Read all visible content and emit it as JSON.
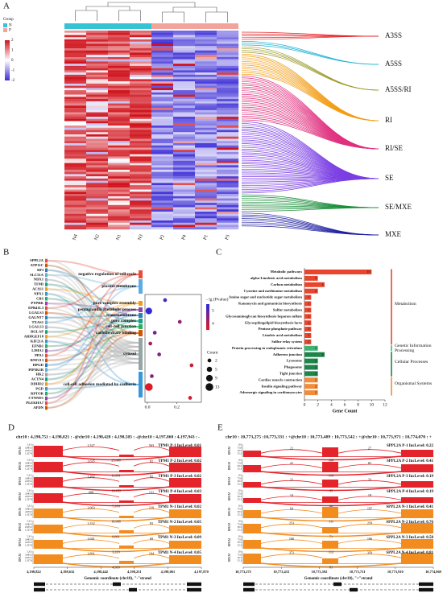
{
  "panels": {
    "A": {
      "label": "A",
      "legend_title": "Group",
      "groups": [
        {
          "name": "N",
          "color": "#35c4d4"
        },
        {
          "name": "P",
          "color": "#f2a49b"
        }
      ],
      "scale_ticks": [
        2,
        1,
        0,
        -1,
        -2
      ],
      "samples": [
        "N4",
        "N2",
        "N1",
        "N3",
        "P2",
        "P4",
        "P1",
        "P3"
      ],
      "event_types": [
        {
          "name": "A3SS",
          "color": "#e8262b"
        },
        {
          "name": "A5SS",
          "color": "#1fb3d6"
        },
        {
          "name": "A5SS/RI",
          "color": "#9a9a2a"
        },
        {
          "name": "RI",
          "color": "#f39c12"
        },
        {
          "name": "RI/SE",
          "color": "#e0307f"
        },
        {
          "name": "SE",
          "color": "#7b3fe4"
        },
        {
          "name": "SE/MXE",
          "color": "#1a8f3a"
        },
        {
          "name": "MXE",
          "color": "#2020a0"
        }
      ]
    },
    "B": {
      "label": "B",
      "genes": [
        "SPPL2A",
        "ATP11C",
        "RFI",
        "SLC51A",
        "NDX1",
        "TFMI",
        "ACSS1",
        "NPX1",
        "CBS",
        "PTPRK",
        "EPB41L3",
        "LGALS3",
        "GALNT7",
        "TXAS1",
        "LGALS3",
        "BGLAP",
        "ARHGEF18",
        "KIF21A",
        "EFNB1",
        "LIMA1",
        "PPA1",
        "RNF213",
        "HPGD",
        "PIP5K1B",
        "HK2",
        "ACTN4",
        "DDHD2",
        "PGD",
        "RPTOR",
        "CTNND1",
        "PLEKHA7",
        "AFDN"
      ],
      "term_colors": [
        "#e74c3c",
        "#5dade2",
        "#f39c12",
        "#8e44ad",
        "#2980b9",
        "#16a085",
        "#27ae60",
        "#d35400",
        "#95a5a6",
        "#3498db"
      ]
    },
    "C": {
      "label": "C"
    },
    "D": {
      "label": "D",
      "header": "chr10 : 4,198,751 : 4,198,821 : -@chr10 : 4,198,428 : 4,198,503 : -@chr10 : 4,197,868 : 4,197,943 : -",
      "y_label": "RPKM",
      "rpkm_ticks": [
        "5,311",
        "3,983.3",
        "2,655.5",
        "1,327.8"
      ],
      "colors": [
        "#e3242b",
        "#f28c1e"
      ],
      "tracks": [
        "TPM1 P-1 IncLevel: 0.01",
        "TPM1 P-2 IncLevel: 0.02",
        "TPM1 P-3 IncLevel: 0.02",
        "TPM1 P-4 IncLevel: 0.03",
        "TPM1 N-1 IncLevel: 0.02",
        "TPM1 N-2 IncLevel: 0.05",
        "TPM1 N-3 IncLevel: 0.09",
        "TPM1 N-4 IncLevel: 0.05"
      ],
      "junctions": [
        [
          "1,327",
          "25,688",
          "563"
        ],
        [
          "1,635",
          "11,951",
          "82"
        ],
        [
          "1,262",
          "14,450",
          "82"
        ],
        [
          "908",
          "7,370",
          "131"
        ],
        [
          "1,063",
          "10,968",
          "219"
        ],
        [
          "1,332",
          "6,861",
          "83"
        ],
        [
          "1,041",
          "3,319",
          "69"
        ],
        [
          "1,891",
          "4,369",
          "104"
        ]
      ],
      "coord_ticks": [
        "4,198,822",
        "4,198,632",
        "4,198,442",
        "4,198,251",
        "4,198,061",
        "4,197,870"
      ],
      "x_label": "Genomic coordinate (chr10), \"-\"strand"
    },
    "E": {
      "label": "E",
      "header": "chr10 : 10,773,275 :10,773,331 : +@chr10 : 10,773,489 : 10,773,542 : +@chr10 : 10,773,971 : 10,774,070 : +",
      "y_label": "RPKM",
      "rpkm_ticks": [
        "101",
        "75.8",
        "50.5",
        "25.3"
      ],
      "colors": [
        "#e3242b",
        "#f28c1e"
      ],
      "tracks": [
        "SPPL2A P-1 IncLevel: 0.22",
        "SPPL2A P-2 IncLevel: 0.41",
        "SPPL2A P-3 IncLevel: 0.19",
        "SPPL2A P-4 IncLevel: 0.19",
        "SPPL2A N-1 IncLevel: 0.41",
        "SPPL2A N-2 IncLevel: 0.76",
        "SPPL2A N-3 IncLevel: 0.58",
        "SPPL2A N-4 IncLevel: 0.81"
      ],
      "junctions": [
        [
          "21",
          "100",
          "27"
        ],
        [
          "41",
          "119",
          "82"
        ],
        [
          "22",
          "95",
          "33"
        ],
        [
          "14",
          "60",
          "18"
        ],
        [
          "64",
          "111",
          "197"
        ],
        [
          "253",
          "71",
          "259"
        ],
        [
          "160",
          "112",
          "166"
        ],
        [
          "373",
          "81",
          "359"
        ]
      ],
      "coord_ticks": [
        "10,773,275",
        "10,773,433",
        "10,773,592",
        "10,773,751",
        "10,773,910",
        "10,774,069"
      ],
      "x_label": "Genomic coordinate (chr10), \"+\"strand"
    }
  },
  "chart_data": [
    {
      "type": "scatter",
      "categories": [
        "negative regulation of cell cycle",
        "plasma membrane",
        "pore complex assembly",
        "pentaglandin metabolic process",
        "transmembrane",
        "pore complex",
        "cell-cell junction",
        "carbohydrate binding",
        "cytosol",
        "cell-cell adhesion mediated by cadherin"
      ],
      "x": [
        0.12,
        0.01,
        0.22,
        0.05,
        0.02,
        0.08,
        0.3,
        0.03,
        0.01,
        0.29
      ],
      "sizes": [
        2,
        9,
        2,
        2,
        2,
        2,
        2,
        2,
        13,
        2
      ],
      "color_values": [
        5.2,
        5.4,
        4.4,
        4.8,
        4.2,
        4.6,
        3.8,
        4.5,
        3.6,
        3.7
      ],
      "xlim": [
        0,
        0.35
      ],
      "xticks": [
        {
          "value": 0,
          "label": "0.0"
        },
        0.2
      ],
      "color_title": "- lg (Pvalue)",
      "color_ticks": [
        5,
        4
      ],
      "color_low": "#e41a1c",
      "color_high": "#2b2bd9",
      "size_title": "Count",
      "size_ticks": [
        2,
        5,
        9,
        13
      ]
    },
    {
      "type": "bar",
      "orientation": "horizontal",
      "categories": [
        "Metabolic pathways",
        "alpha-Linolenic acid metabolism",
        "Carbon metabolism",
        "Cysteine and methionine metabolism",
        "Amino sugar and nucleotide sugar metabolism",
        "Kanamycin and gentamicin biosynthesis",
        "Sulfur metabolism",
        "Glycosaminoglycan biosynthesis heparan sulfate",
        "Glycosphingolipid biosynthesis lacto",
        "Pentose phosphate pathway",
        "Linoleic acid metabolism",
        "Sulfur relay system",
        "Protein processing in endoplasmic reticulum",
        "Adherens junction",
        "Lysosome",
        "Phagosome",
        "Tight junction",
        "Cardiac muscle contraction",
        "Insulin signaling pathway",
        "Adrenergic signaling in cardiomyocytes"
      ],
      "values": [
        10,
        2,
        3,
        2,
        1,
        1,
        1,
        1,
        1,
        1,
        1,
        1,
        2,
        3,
        2,
        2,
        2,
        2,
        2,
        2
      ],
      "colors": [
        "#e8452c",
        "#e8452c",
        "#e8452c",
        "#e8452c",
        "#e8452c",
        "#e8452c",
        "#e8452c",
        "#e8452c",
        "#e8452c",
        "#e8452c",
        "#e8452c",
        "#e8452c",
        "#3cb371",
        "#1e8449",
        "#1e8449",
        "#1e8449",
        "#1e8449",
        "#f08c3a",
        "#f08c3a",
        "#f08c3a"
      ],
      "groups": [
        {
          "name": "Metabolism",
          "color": "#e8452c"
        },
        {
          "name": "Genetic Information Processing",
          "color": "#3cb371"
        },
        {
          "name": "Cellular Processes",
          "color": "#1e8449"
        },
        {
          "name": "Organismal Systems",
          "color": "#f08c3a"
        }
      ],
      "xlabel": "Gene Count",
      "xlim": [
        0,
        12
      ],
      "xticks": [
        0,
        2,
        4,
        6,
        8,
        10,
        12
      ]
    }
  ]
}
